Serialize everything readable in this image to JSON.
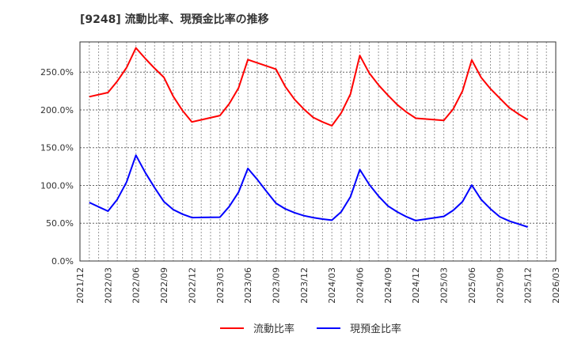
{
  "title": "[9248]  流動比率、現預金比率の推移",
  "chart_data": {
    "type": "line",
    "title": "[9248]  流動比率、現預金比率の推移",
    "xlabel": "",
    "ylabel": "",
    "ylim": [
      0,
      290
    ],
    "yticks": [
      0,
      50,
      100,
      150,
      200,
      250
    ],
    "ytick_labels": [
      "0.0%",
      "50.0%",
      "100.0%",
      "150.0%",
      "200.0%",
      "250.0%"
    ],
    "xlim_months": [
      0,
      51
    ],
    "xtick_labels": [
      "2021/12",
      "2022/03",
      "2022/06",
      "2022/09",
      "2022/12",
      "2023/03",
      "2023/06",
      "2023/09",
      "2023/12",
      "2024/03",
      "2024/06",
      "2024/09",
      "2024/12",
      "2025/03",
      "2025/06",
      "2025/09",
      "2025/12",
      "2026/03"
    ],
    "grid": true,
    "legend_position": "bottom",
    "series": [
      {
        "name": "流動比率",
        "color": "#ff0000",
        "points": [
          {
            "x": "2022/01",
            "m": 1,
            "y": 217.5
          },
          {
            "x": "2022/03",
            "m": 3,
            "y": 223
          },
          {
            "x": "2022/04",
            "m": 4,
            "y": 238
          },
          {
            "x": "2022/05",
            "m": 5,
            "y": 256
          },
          {
            "x": "2022/06",
            "m": 6,
            "y": 282
          },
          {
            "x": "2022/07",
            "m": 7,
            "y": 268
          },
          {
            "x": "2022/08",
            "m": 8,
            "y": 255
          },
          {
            "x": "2022/09",
            "m": 9,
            "y": 243
          },
          {
            "x": "2022/10",
            "m": 10,
            "y": 218
          },
          {
            "x": "2022/11",
            "m": 11,
            "y": 199
          },
          {
            "x": "2022/12",
            "m": 12,
            "y": 184
          },
          {
            "x": "2023/03",
            "m": 15,
            "y": 192.5
          },
          {
            "x": "2023/04",
            "m": 16,
            "y": 208
          },
          {
            "x": "2023/05",
            "m": 17,
            "y": 229
          },
          {
            "x": "2023/06",
            "m": 18,
            "y": 266.5
          },
          {
            "x": "2023/09",
            "m": 21,
            "y": 254
          },
          {
            "x": "2023/10",
            "m": 22,
            "y": 231
          },
          {
            "x": "2023/11",
            "m": 23,
            "y": 214
          },
          {
            "x": "2023/12",
            "m": 24,
            "y": 201
          },
          {
            "x": "2024/01",
            "m": 25,
            "y": 190
          },
          {
            "x": "2024/02",
            "m": 26,
            "y": 184
          },
          {
            "x": "2024/03",
            "m": 27,
            "y": 179
          },
          {
            "x": "2024/04",
            "m": 28,
            "y": 196
          },
          {
            "x": "2024/05",
            "m": 29,
            "y": 221
          },
          {
            "x": "2024/06",
            "m": 30,
            "y": 272
          },
          {
            "x": "2024/07",
            "m": 31,
            "y": 249
          },
          {
            "x": "2024/08",
            "m": 32,
            "y": 233
          },
          {
            "x": "2024/09",
            "m": 33,
            "y": 219.5
          },
          {
            "x": "2024/10",
            "m": 34,
            "y": 207
          },
          {
            "x": "2024/11",
            "m": 35,
            "y": 197
          },
          {
            "x": "2024/12",
            "m": 36,
            "y": 189
          },
          {
            "x": "2025/03",
            "m": 39,
            "y": 186
          },
          {
            "x": "2025/04",
            "m": 40,
            "y": 201
          },
          {
            "x": "2025/05",
            "m": 41,
            "y": 225
          },
          {
            "x": "2025/06",
            "m": 42,
            "y": 266
          },
          {
            "x": "2025/07",
            "m": 43,
            "y": 243
          },
          {
            "x": "2025/08",
            "m": 44,
            "y": 228
          },
          {
            "x": "2025/09",
            "m": 45,
            "y": 215.5
          },
          {
            "x": "2025/10",
            "m": 46,
            "y": 203
          },
          {
            "x": "2025/11",
            "m": 47,
            "y": 194.5
          },
          {
            "x": "2025/12",
            "m": 48,
            "y": 187
          }
        ]
      },
      {
        "name": "現預金比率",
        "color": "#0000ff",
        "points": [
          {
            "x": "2022/01",
            "m": 1,
            "y": 77.5
          },
          {
            "x": "2022/03",
            "m": 3,
            "y": 66
          },
          {
            "x": "2022/04",
            "m": 4,
            "y": 81.5
          },
          {
            "x": "2022/05",
            "m": 5,
            "y": 104.5
          },
          {
            "x": "2022/06",
            "m": 6,
            "y": 140
          },
          {
            "x": "2022/07",
            "m": 7,
            "y": 117
          },
          {
            "x": "2022/08",
            "m": 8,
            "y": 97
          },
          {
            "x": "2022/09",
            "m": 9,
            "y": 78.5
          },
          {
            "x": "2022/10",
            "m": 10,
            "y": 68
          },
          {
            "x": "2022/11",
            "m": 11,
            "y": 62
          },
          {
            "x": "2022/12",
            "m": 12,
            "y": 57.5
          },
          {
            "x": "2023/03",
            "m": 15,
            "y": 58
          },
          {
            "x": "2023/04",
            "m": 16,
            "y": 72
          },
          {
            "x": "2023/05",
            "m": 17,
            "y": 91
          },
          {
            "x": "2023/06",
            "m": 18,
            "y": 122.5
          },
          {
            "x": "2023/07",
            "m": 19,
            "y": 108
          },
          {
            "x": "2023/08",
            "m": 20,
            "y": 92
          },
          {
            "x": "2023/09",
            "m": 21,
            "y": 76.5
          },
          {
            "x": "2023/10",
            "m": 22,
            "y": 69
          },
          {
            "x": "2023/11",
            "m": 23,
            "y": 64
          },
          {
            "x": "2023/12",
            "m": 24,
            "y": 60
          },
          {
            "x": "2024/01",
            "m": 25,
            "y": 57.5
          },
          {
            "x": "2024/02",
            "m": 26,
            "y": 55.5
          },
          {
            "x": "2024/03",
            "m": 27,
            "y": 54
          },
          {
            "x": "2024/04",
            "m": 28,
            "y": 65
          },
          {
            "x": "2024/05",
            "m": 29,
            "y": 85
          },
          {
            "x": "2024/06",
            "m": 30,
            "y": 121
          },
          {
            "x": "2024/07",
            "m": 31,
            "y": 101.5
          },
          {
            "x": "2024/08",
            "m": 32,
            "y": 86
          },
          {
            "x": "2024/09",
            "m": 33,
            "y": 73
          },
          {
            "x": "2024/10",
            "m": 34,
            "y": 65
          },
          {
            "x": "2024/11",
            "m": 35,
            "y": 58.5
          },
          {
            "x": "2024/12",
            "m": 36,
            "y": 53.5
          },
          {
            "x": "2025/03",
            "m": 39,
            "y": 59
          },
          {
            "x": "2025/04",
            "m": 40,
            "y": 67
          },
          {
            "x": "2025/05",
            "m": 41,
            "y": 78.5
          },
          {
            "x": "2025/06",
            "m": 42,
            "y": 100.5
          },
          {
            "x": "2025/07",
            "m": 43,
            "y": 81.5
          },
          {
            "x": "2025/08",
            "m": 44,
            "y": 69
          },
          {
            "x": "2025/09",
            "m": 45,
            "y": 58.5
          },
          {
            "x": "2025/10",
            "m": 46,
            "y": 53
          },
          {
            "x": "2025/11",
            "m": 47,
            "y": 49
          },
          {
            "x": "2025/12",
            "m": 48,
            "y": 45
          }
        ]
      }
    ]
  },
  "legend": {
    "items": [
      {
        "label": "流動比率",
        "color": "#ff0000"
      },
      {
        "label": "現預金比率",
        "color": "#0000ff"
      }
    ]
  }
}
